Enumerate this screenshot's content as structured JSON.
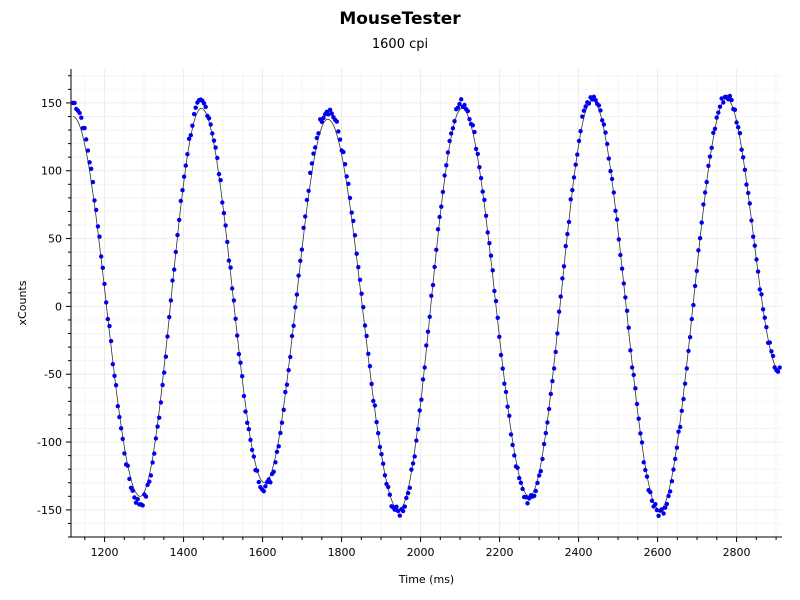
{
  "window": {
    "title": "MouseTester",
    "subtitle": "1600 cpi"
  },
  "colors": {
    "points": "#0000ee",
    "fit_line": "#333333",
    "grid": "#ebebeb",
    "minor_grid": "#f4f4f4",
    "axis": "#000000"
  },
  "chart_data": {
    "type": "scatter",
    "title": "MouseTester",
    "subtitle": "1600 cpi",
    "xlabel": "Time (ms)",
    "ylabel": "xCounts",
    "xlim": [
      1115,
      2915
    ],
    "ylim": [
      -170,
      175
    ],
    "xticks": [
      1200,
      1400,
      1600,
      1800,
      2000,
      2200,
      2400,
      2600,
      2800
    ],
    "yticks": [
      -150,
      -100,
      -50,
      0,
      50,
      100,
      150
    ],
    "grid": true,
    "legend": "none",
    "series": [
      {
        "kind": "points",
        "extrema": [
          {
            "x": 1120,
            "y": 150
          },
          {
            "x": 1290,
            "y": -145
          },
          {
            "x": 1445,
            "y": 150
          },
          {
            "x": 1605,
            "y": -133
          },
          {
            "x": 1765,
            "y": 145
          },
          {
            "x": 1945,
            "y": -152
          },
          {
            "x": 2105,
            "y": 150
          },
          {
            "x": 2275,
            "y": -143
          },
          {
            "x": 2435,
            "y": 155
          },
          {
            "x": 2605,
            "y": -152
          },
          {
            "x": 2775,
            "y": 155
          },
          {
            "x": 2910,
            "y": -48
          }
        ]
      },
      {
        "kind": "fit-line",
        "extrema": [
          {
            "x": 1120,
            "y": 140
          },
          {
            "x": 1290,
            "y": -140
          },
          {
            "x": 1445,
            "y": 146
          },
          {
            "x": 1605,
            "y": -130
          },
          {
            "x": 1765,
            "y": 138
          },
          {
            "x": 1945,
            "y": -150
          },
          {
            "x": 2105,
            "y": 146
          },
          {
            "x": 2275,
            "y": -140
          },
          {
            "x": 2435,
            "y": 152
          },
          {
            "x": 2605,
            "y": -150
          },
          {
            "x": 2775,
            "y": 153
          },
          {
            "x": 2910,
            "y": -48
          }
        ]
      }
    ]
  }
}
